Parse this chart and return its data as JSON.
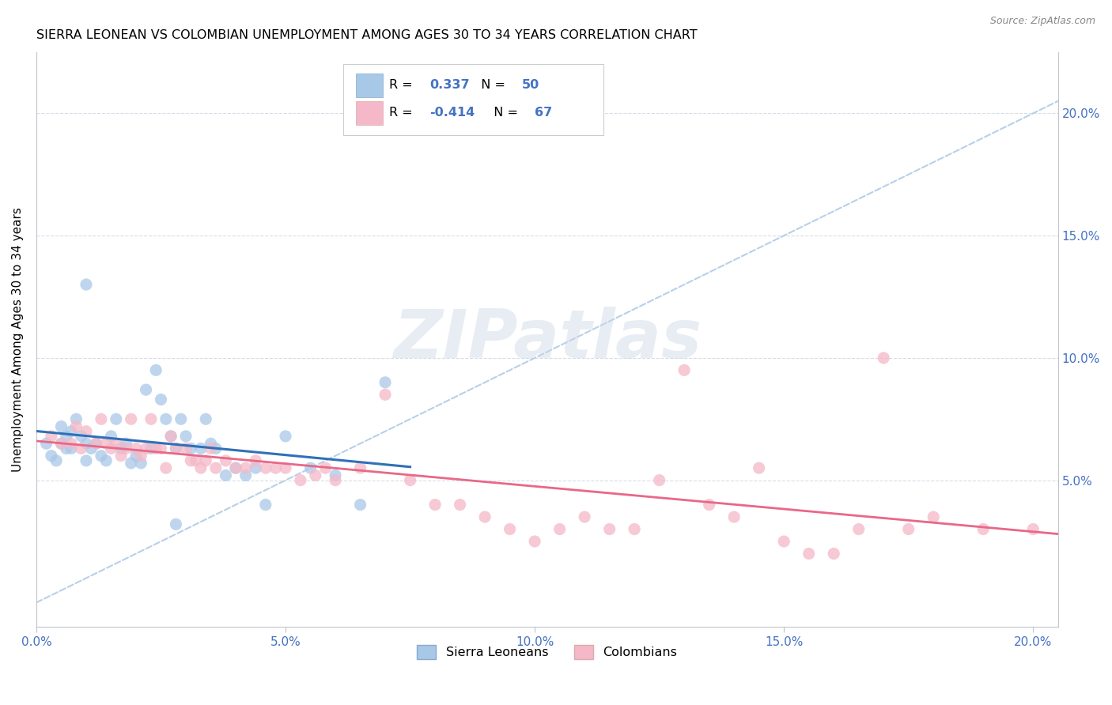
{
  "title": "SIERRA LEONEAN VS COLOMBIAN UNEMPLOYMENT AMONG AGES 30 TO 34 YEARS CORRELATION CHART",
  "source": "Source: ZipAtlas.com",
  "ylabel": "Unemployment Among Ages 30 to 34 years",
  "xlim": [
    0.0,
    0.205
  ],
  "ylim": [
    -0.01,
    0.225
  ],
  "xticks": [
    0.0,
    0.05,
    0.1,
    0.15,
    0.2
  ],
  "yticks": [
    0.05,
    0.1,
    0.15,
    0.2
  ],
  "xticklabels": [
    "0.0%",
    "5.0%",
    "10.0%",
    "15.0%",
    "20.0%"
  ],
  "right_yticklabels": [
    "5.0%",
    "10.0%",
    "15.0%",
    "20.0%"
  ],
  "sierra_color": "#a8c8e8",
  "colombian_color": "#f4b8c8",
  "sierra_line_color": "#3070b8",
  "colombian_line_color": "#e86888",
  "diagonal_color": "#b8d0e8",
  "watermark_text": "ZIPatlas",
  "legend_R_sierra": "0.337",
  "legend_N_sierra": "50",
  "legend_R_colombian": "-0.414",
  "legend_N_colombian": "67",
  "sierra_leoneans_label": "Sierra Leoneans",
  "colombians_label": "Colombians",
  "sierra_x": [
    0.002,
    0.003,
    0.004,
    0.005,
    0.005,
    0.006,
    0.006,
    0.007,
    0.007,
    0.008,
    0.009,
    0.01,
    0.01,
    0.011,
    0.012,
    0.013,
    0.014,
    0.015,
    0.016,
    0.017,
    0.018,
    0.019,
    0.02,
    0.021,
    0.022,
    0.023,
    0.024,
    0.025,
    0.026,
    0.027,
    0.028,
    0.029,
    0.03,
    0.031,
    0.033,
    0.034,
    0.035,
    0.036,
    0.038,
    0.04,
    0.042,
    0.044,
    0.046,
    0.05,
    0.055,
    0.06,
    0.065,
    0.07,
    0.028,
    0.01
  ],
  "sierra_y": [
    0.065,
    0.06,
    0.058,
    0.072,
    0.065,
    0.068,
    0.063,
    0.07,
    0.063,
    0.075,
    0.068,
    0.065,
    0.058,
    0.063,
    0.065,
    0.06,
    0.058,
    0.068,
    0.075,
    0.063,
    0.065,
    0.057,
    0.06,
    0.057,
    0.087,
    0.063,
    0.095,
    0.083,
    0.075,
    0.068,
    0.063,
    0.075,
    0.068,
    0.063,
    0.063,
    0.075,
    0.065,
    0.063,
    0.052,
    0.055,
    0.052,
    0.055,
    0.04,
    0.068,
    0.055,
    0.052,
    0.04,
    0.09,
    0.032,
    0.13
  ],
  "colombian_x": [
    0.003,
    0.005,
    0.007,
    0.008,
    0.009,
    0.01,
    0.012,
    0.013,
    0.014,
    0.015,
    0.016,
    0.017,
    0.018,
    0.019,
    0.02,
    0.021,
    0.022,
    0.023,
    0.024,
    0.025,
    0.026,
    0.027,
    0.028,
    0.03,
    0.031,
    0.032,
    0.033,
    0.034,
    0.035,
    0.036,
    0.038,
    0.04,
    0.042,
    0.044,
    0.046,
    0.048,
    0.05,
    0.053,
    0.056,
    0.058,
    0.06,
    0.065,
    0.07,
    0.075,
    0.08,
    0.085,
    0.09,
    0.095,
    0.1,
    0.105,
    0.11,
    0.115,
    0.12,
    0.125,
    0.13,
    0.135,
    0.14,
    0.145,
    0.15,
    0.155,
    0.16,
    0.165,
    0.17,
    0.175,
    0.18,
    0.19,
    0.2
  ],
  "colombian_y": [
    0.068,
    0.065,
    0.065,
    0.072,
    0.063,
    0.07,
    0.065,
    0.075,
    0.065,
    0.063,
    0.065,
    0.06,
    0.063,
    0.075,
    0.063,
    0.06,
    0.063,
    0.075,
    0.063,
    0.063,
    0.055,
    0.068,
    0.063,
    0.063,
    0.058,
    0.058,
    0.055,
    0.058,
    0.063,
    0.055,
    0.058,
    0.055,
    0.055,
    0.058,
    0.055,
    0.055,
    0.055,
    0.05,
    0.052,
    0.055,
    0.05,
    0.055,
    0.085,
    0.05,
    0.04,
    0.04,
    0.035,
    0.03,
    0.025,
    0.03,
    0.035,
    0.03,
    0.03,
    0.05,
    0.095,
    0.04,
    0.035,
    0.055,
    0.025,
    0.02,
    0.02,
    0.03,
    0.1,
    0.03,
    0.035,
    0.03,
    0.03
  ],
  "grid_color": "#d8dce8",
  "spine_color": "#c0c4cc",
  "tick_color": "#4472C4",
  "background_color": "#ffffff"
}
